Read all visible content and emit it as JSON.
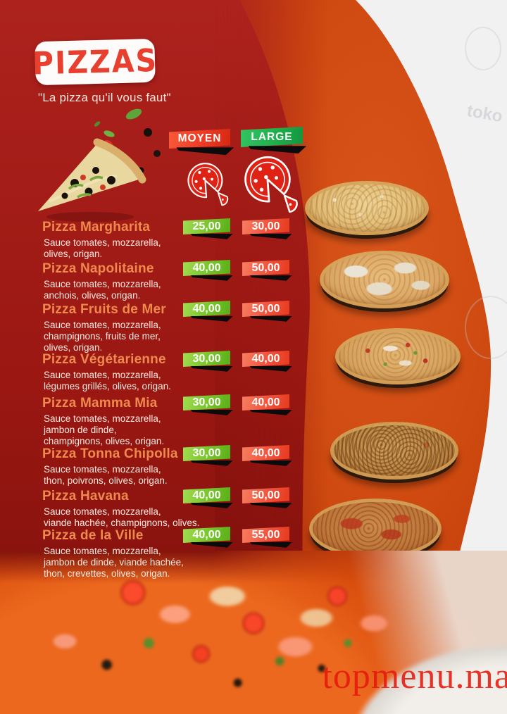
{
  "header": {
    "title": "PIZZAS",
    "subtitle": "\"La pizza qu'il vous faut\""
  },
  "size_columns": {
    "moyen": "MOYEN",
    "large": "LARGE"
  },
  "menu": {
    "items": [
      {
        "name": "Pizza Margharita",
        "description": "Sauce tomates, mozzarella,\nolives, origan.",
        "price_moyen": "25,00",
        "price_large": "30,00"
      },
      {
        "name": "Pizza Napolitaine",
        "description": "Sauce tomates, mozzarella,\nanchois, olives, origan.",
        "price_moyen": "40,00",
        "price_large": "50,00"
      },
      {
        "name": "Pizza Fruits de Mer",
        "description": "Sauce tomates, mozzarella,\nchampignons, fruits de mer,\nolives, origan.",
        "price_moyen": "40,00",
        "price_large": "50,00"
      },
      {
        "name": "Pizza Végétarienne",
        "description": "Sauce tomates, mozzarella,\nlégumes grillés, olives, origan.",
        "price_moyen": "30,00",
        "price_large": "40,00"
      },
      {
        "name": "Pizza Mamma Mia",
        "description": "Sauce tomates, mozzarella,\njambon de dinde,\nchampignons, olives, origan.",
        "price_moyen": "30,00",
        "price_large": "40,00"
      },
      {
        "name": "Pizza Tonna Chipolla",
        "description": "Sauce tomates, mozzarella,\nthon, poivrons, olives, origan.",
        "price_moyen": "30,00",
        "price_large": "40,00"
      },
      {
        "name": "Pizza Havana",
        "description": "Sauce tomates, mozzarella,\nviande hachée, champignons, olives.",
        "price_moyen": "40,00",
        "price_large": "50,00"
      },
      {
        "name": "Pizza de la Ville",
        "description": "Sauce tomates, mozzarella,\njambon de dinde, viande hachée,\nthon, crevettes, olives, origan.",
        "price_moyen": "40,00",
        "price_large": "55,00"
      }
    ]
  },
  "background": {
    "corner_watermark": "toko"
  },
  "footer": {
    "watermark": "topmenu.ma"
  },
  "colors": {
    "title_text": "#e8402f",
    "item_name_text": "#ef8a4e",
    "moyen_banner": "#ee3b25",
    "large_banner": "#1fb14c",
    "price_moyen_tag": "#76c52c",
    "price_large_tag": "#f1523c",
    "background_dark_red": "#9a1712",
    "background_orange": "#cf4a10"
  }
}
